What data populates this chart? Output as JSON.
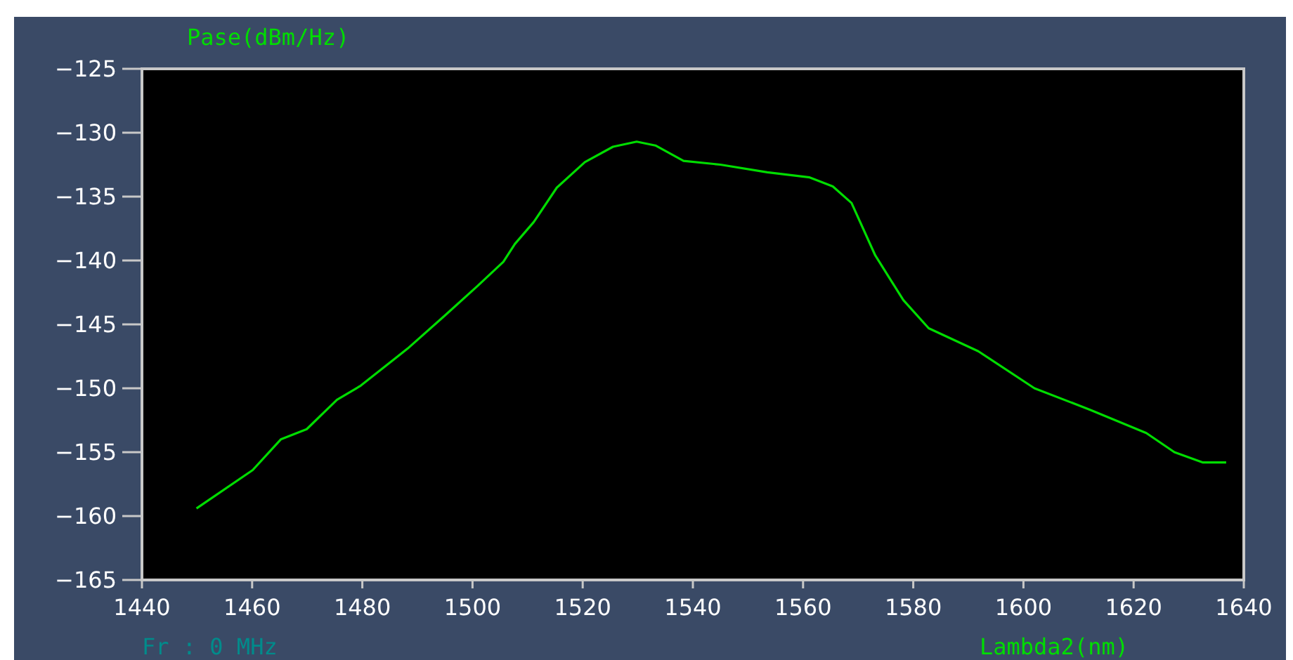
{
  "chart_data": {
    "type": "line",
    "xlabel": "Lambda2(nm)",
    "ylabel": "Pase(dBm/Hz)",
    "annotations": [
      "Fr : 0 MHz"
    ],
    "xlim": [
      1440,
      1640
    ],
    "xticks": [
      1440,
      1460,
      1480,
      1500,
      1520,
      1540,
      1560,
      1580,
      1600,
      1620,
      1640
    ],
    "ylim": [
      -165,
      -125
    ],
    "yticks": [
      -165,
      -160,
      -155,
      -150,
      -145,
      -140,
      -135,
      -130,
      -125
    ],
    "grid": false,
    "marker": "none",
    "line_style": "solid",
    "series": [
      {
        "color": "#00dd00",
        "x": [
          1449.9,
          1460.1,
          1465.2,
          1469.9,
          1475.4,
          1479.7,
          1488.2,
          1495.0,
          1500.9,
          1505.6,
          1507.7,
          1511.1,
          1515.3,
          1520.4,
          1525.5,
          1529.8,
          1533.2,
          1538.3,
          1545.0,
          1553.5,
          1561.2,
          1565.4,
          1568.8,
          1573.1,
          1578.2,
          1582.8,
          1591.8,
          1602.0,
          1612.2,
          1622.3,
          1627.4,
          1632.5,
          1636.8
        ],
        "values": [
          -159.4,
          -156.4,
          -154.0,
          -153.2,
          -150.9,
          -149.8,
          -146.9,
          -144.3,
          -142.0,
          -140.1,
          -138.7,
          -137.0,
          -134.3,
          -132.3,
          -131.1,
          -130.7,
          -131.0,
          -132.2,
          -132.5,
          -133.1,
          -133.5,
          -134.2,
          -135.5,
          -139.6,
          -143.1,
          -145.3,
          -147.1,
          -150.0,
          -151.7,
          -153.5,
          -155.0,
          -155.8,
          -155.8
        ]
      }
    ]
  }
}
